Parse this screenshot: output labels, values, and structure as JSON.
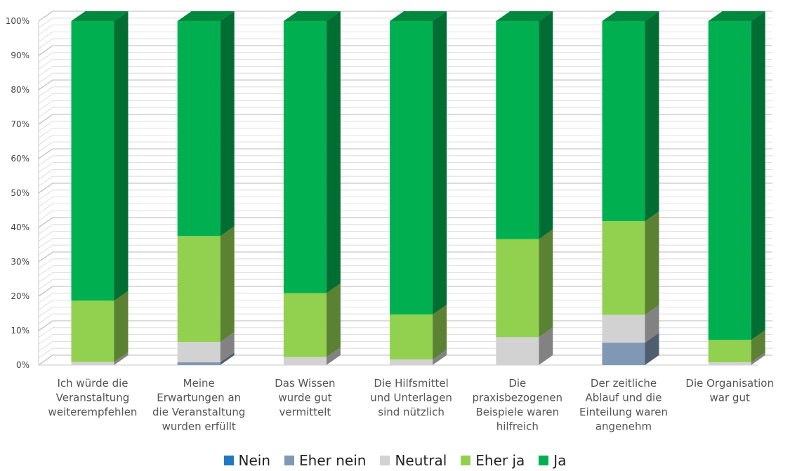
{
  "chart_data": {
    "type": "bar",
    "stacked": true,
    "three_d": true,
    "title": "",
    "xlabel": "",
    "ylabel": "",
    "ylim": [
      0,
      100
    ],
    "yticks": [
      "0%",
      "10%",
      "20%",
      "30%",
      "40%",
      "50%",
      "60%",
      "70%",
      "80%",
      "90%",
      "100%"
    ],
    "grid": true,
    "legend_position": "bottom",
    "categories": [
      [
        "Ich würde die",
        "Veranstaltung",
        "weiterempfehlen"
      ],
      [
        "Meine",
        "Erwartungen an",
        "die Veranstaltung",
        "wurden erfüllt"
      ],
      [
        "Das Wissen",
        "wurde gut",
        "vermittelt"
      ],
      [
        "Die Hilfsmittel",
        "und Unterlagen",
        "sind nützlich"
      ],
      [
        "Die",
        "praxisbezogenen",
        "Beispiele waren",
        "hilfreich"
      ],
      [
        "Der zeitliche",
        "Ablauf und die",
        "Einteilung waren",
        "angenehm"
      ],
      [
        "Die Organisation",
        "war gut"
      ]
    ],
    "series": [
      {
        "name": "Nein",
        "color": "#1f78c1",
        "values": [
          0,
          0,
          0,
          0,
          0,
          0,
          0
        ]
      },
      {
        "name": "Eher nein",
        "color": "#7f98b3",
        "values": [
          0,
          0.8,
          0,
          0,
          0,
          6.5,
          0
        ]
      },
      {
        "name": "Neutral",
        "color": "#d2d2d2",
        "values": [
          0.9,
          5.9,
          2.3,
          1.6,
          8.1,
          8.1,
          0.8
        ]
      },
      {
        "name": "Eher ja",
        "color": "#92d050",
        "values": [
          17.8,
          30.8,
          18.6,
          13.1,
          28.5,
          27.2,
          6.5
        ]
      },
      {
        "name": "Ja",
        "color": "#00b050",
        "values": [
          81.3,
          62.5,
          79.1,
          85.3,
          63.4,
          58.2,
          92.7
        ]
      }
    ]
  }
}
